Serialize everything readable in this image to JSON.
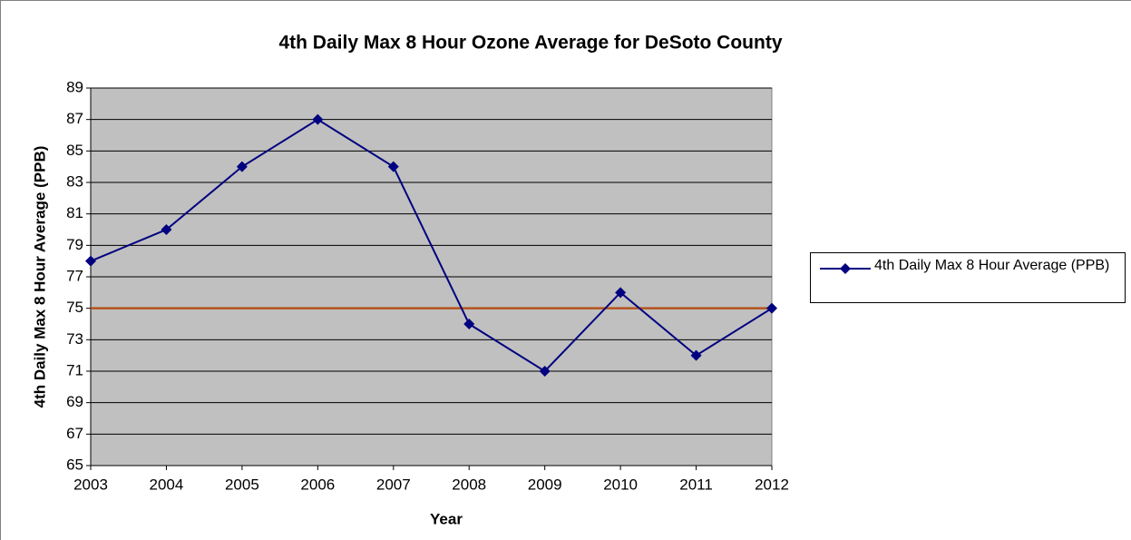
{
  "chart_data": {
    "type": "line",
    "title": "4th Daily Max 8 Hour Ozone Average for DeSoto County",
    "x_label": "Year",
    "y_label": "4th Daily Max 8 Hour Average (PPB)",
    "categories": [
      "2003",
      "2004",
      "2005",
      "2006",
      "2007",
      "2008",
      "2009",
      "2010",
      "2011",
      "2012"
    ],
    "series": [
      {
        "name": "4th Daily Max 8 Hour Average (PPB)",
        "color": "#000080",
        "values": [
          78,
          80,
          84,
          87,
          84,
          74,
          71,
          76,
          72,
          75
        ]
      }
    ],
    "reference_line": {
      "value": 75,
      "color": "#b5531c"
    },
    "ylim": [
      65,
      89
    ],
    "yticks": [
      65,
      67,
      69,
      71,
      73,
      75,
      77,
      79,
      81,
      83,
      85,
      87,
      89
    ],
    "grid": true,
    "legend": "right"
  }
}
